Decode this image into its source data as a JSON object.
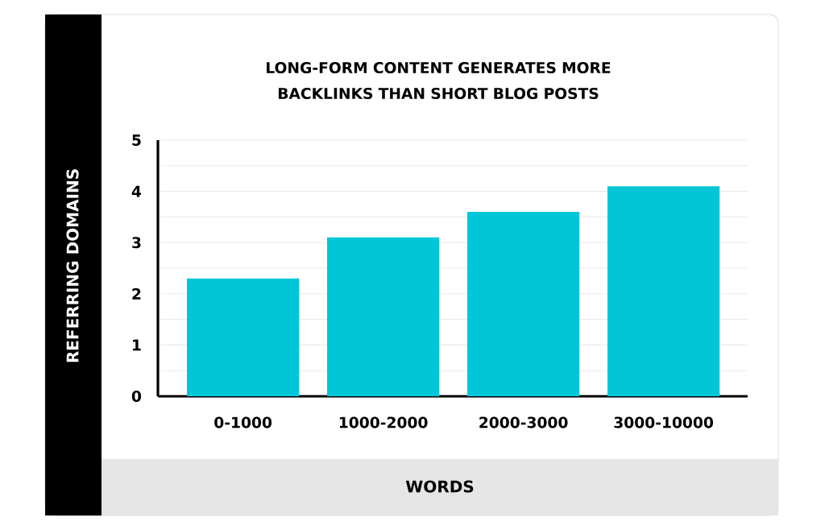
{
  "chart_data": {
    "type": "bar",
    "title": "LONG-FORM CONTENT GENERATES MORE BACKLINKS THAN SHORT BLOG POSTS",
    "xlabel": "WORDS",
    "ylabel": "REFERRING DOMAINS",
    "categories": [
      "0-1000",
      "1000-2000",
      "2000-3000",
      "3000-10000"
    ],
    "values": [
      2.3,
      3.1,
      3.6,
      4.1
    ],
    "color": "#00c6d8",
    "ylim": [
      0,
      5
    ],
    "yticks": [
      0,
      1,
      2,
      3,
      4,
      5
    ],
    "grid": true
  }
}
